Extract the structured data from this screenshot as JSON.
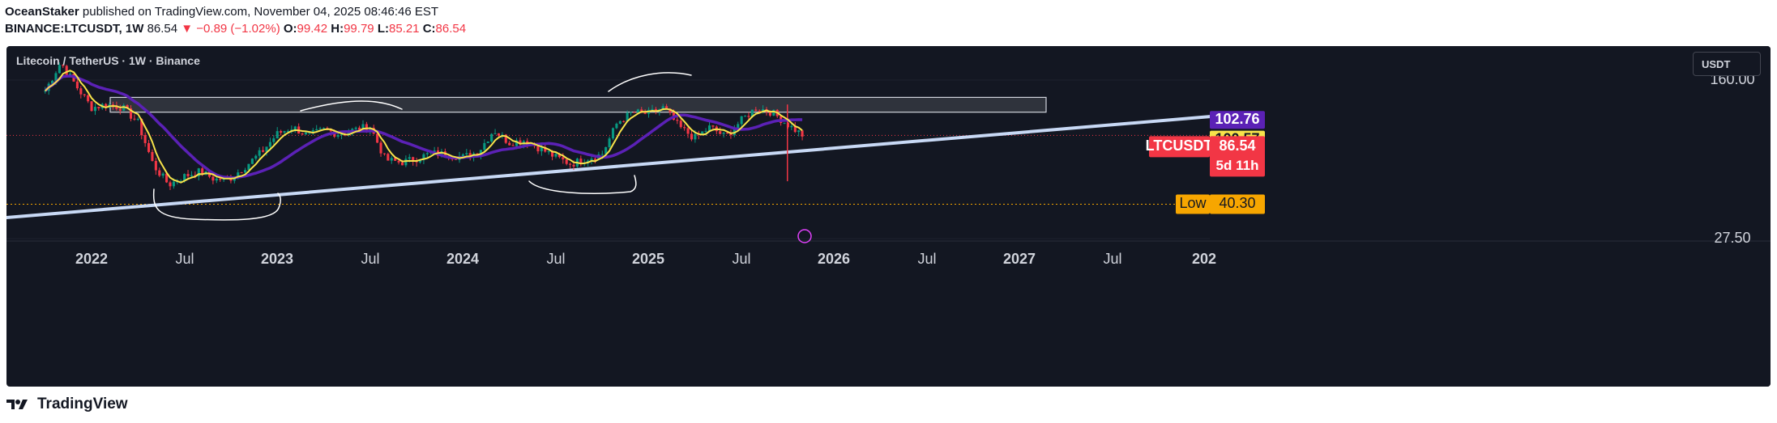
{
  "header": {
    "publisher": "OceanStaker",
    "published_text": "published on TradingView.com, November 04, 2025 08:46:46 EST",
    "symbol": "BINANCE:LTCUSDT, 1W",
    "last": "86.54",
    "change": "▼ −0.89 (−1.02%)",
    "o_label": "O:",
    "o_value": "99.42",
    "h_label": "H:",
    "h_value": "99.79",
    "l_label": "L:",
    "l_value": "85.21",
    "c_label": "C:",
    "c_value": "86.54"
  },
  "chart": {
    "title": "Litecoin / TetherUS · 1W · Binance",
    "currency_button": "USDT",
    "footer_brand": "TradingView",
    "colors": {
      "background": "#131722",
      "up": "#089981",
      "down": "#f23645",
      "sma_fast": "#f7e34a",
      "sma_slow": "#5b21b6",
      "trendline": "#c8d9f5",
      "zone": "#ffffff",
      "text": "#d1d4dc"
    }
  },
  "chart_data": {
    "type": "candlestick",
    "title": "Litecoin / TetherUS · 1W · Binance",
    "scale": "log",
    "y_ticks": [
      "160.00",
      "27.50"
    ],
    "x_ticks": [
      "2022",
      "Jul",
      "2023",
      "Jul",
      "2024",
      "Jul",
      "2025",
      "Jul",
      "2026",
      "Jul",
      "2027",
      "Jul",
      "202"
    ],
    "last_price_label": {
      "symbol": "LTCUSDT",
      "price": "86.54",
      "countdown": "5d 11h"
    },
    "price_labels": {
      "sma_slow": "102.76",
      "sma_fast": "100.57"
    },
    "low_marker": {
      "label": "Low",
      "value": "40.30"
    },
    "resistance_zone": {
      "from": 112,
      "to": 132
    },
    "trendline": {
      "start": {
        "date": "2021-10",
        "price": 36
      },
      "end": {
        "date": "2026-12",
        "price": 88
      }
    },
    "price_path": [
      [
        "2021-10",
        142
      ],
      [
        "2021-11",
        195
      ],
      [
        "2021-12",
        150
      ],
      [
        "2022-01",
        118
      ],
      [
        "2022-02",
        122
      ],
      [
        "2022-03",
        118
      ],
      [
        "2022-04",
        100
      ],
      [
        "2022-05",
        62
      ],
      [
        "2022-06",
        50
      ],
      [
        "2022-07",
        55
      ],
      [
        "2022-08",
        58
      ],
      [
        "2022-09",
        53
      ],
      [
        "2022-10",
        54
      ],
      [
        "2022-11",
        62
      ],
      [
        "2022-12",
        72
      ],
      [
        "2023-01",
        88
      ],
      [
        "2023-02",
        95
      ],
      [
        "2023-03",
        86
      ],
      [
        "2023-04",
        92
      ],
      [
        "2023-05",
        88
      ],
      [
        "2023-06",
        92
      ],
      [
        "2023-07",
        96
      ],
      [
        "2023-08",
        66
      ],
      [
        "2023-09",
        64
      ],
      [
        "2023-10",
        67
      ],
      [
        "2023-11",
        71
      ],
      [
        "2023-12",
        70
      ],
      [
        "2024-01",
        68
      ],
      [
        "2024-02",
        72
      ],
      [
        "2024-03",
        92
      ],
      [
        "2024-04",
        80
      ],
      [
        "2024-05",
        82
      ],
      [
        "2024-06",
        75
      ],
      [
        "2024-07",
        68
      ],
      [
        "2024-08",
        63
      ],
      [
        "2024-09",
        67
      ],
      [
        "2024-10",
        70
      ],
      [
        "2024-11",
        100
      ],
      [
        "2024-12",
        112
      ],
      [
        "2025-01",
        110
      ],
      [
        "2025-02",
        118
      ],
      [
        "2025-03",
        95
      ],
      [
        "2025-04",
        84
      ],
      [
        "2025-05",
        95
      ],
      [
        "2025-06",
        85
      ],
      [
        "2025-07",
        102
      ],
      [
        "2025-08",
        118
      ],
      [
        "2025-09",
        112
      ],
      [
        "2025-10",
        98
      ],
      [
        "2025-11",
        86.54
      ]
    ]
  }
}
